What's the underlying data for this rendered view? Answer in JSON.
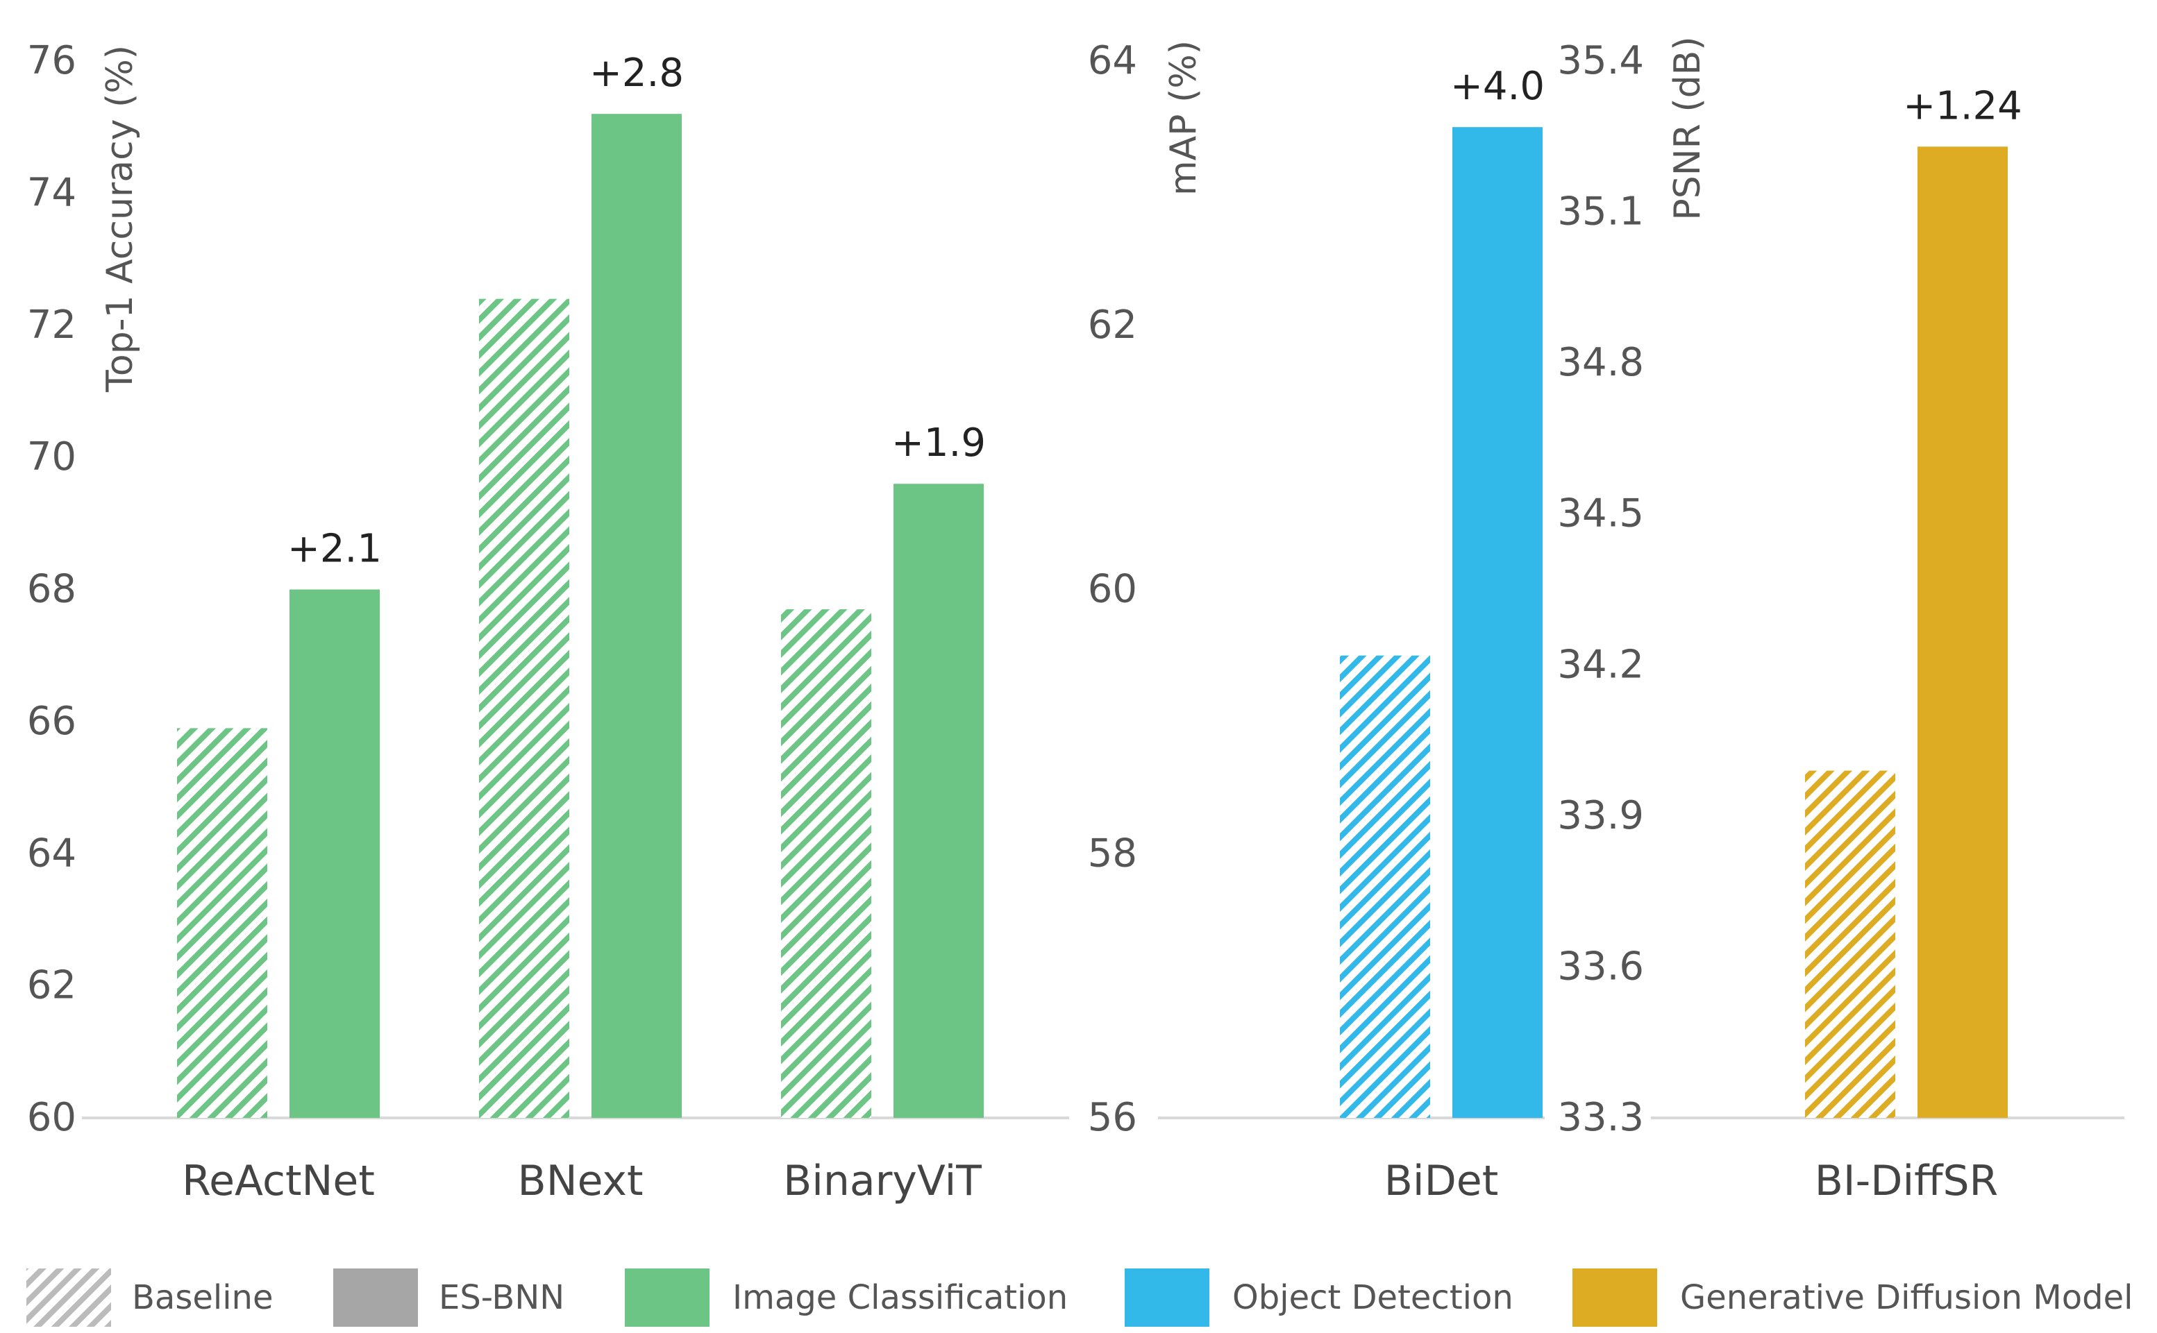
{
  "chart_data": [
    {
      "type": "bar",
      "categories": [
        "ReActNet",
        "BNext",
        "BinaryViT"
      ],
      "ylabel": "Top-1 Accuracy (%)",
      "ylim": [
        60,
        76
      ],
      "yticks": [
        "60",
        "62",
        "64",
        "66",
        "68",
        "70",
        "72",
        "74",
        "76"
      ],
      "series": [
        {
          "name": "Baseline",
          "values": [
            65.9,
            72.4,
            67.7
          ]
        },
        {
          "name": "ES-BNN",
          "values": [
            68.0,
            75.2,
            69.6
          ]
        }
      ],
      "annotations": [
        "+2.1",
        "+2.8",
        "+1.9"
      ],
      "color": "#6CC585"
    },
    {
      "type": "bar",
      "categories": [
        "BiDet"
      ],
      "ylabel": "mAP (%)",
      "ylim": [
        56,
        64
      ],
      "yticks": [
        "56",
        "58",
        "60",
        "62",
        "64"
      ],
      "series": [
        {
          "name": "Baseline",
          "values": [
            59.5
          ]
        },
        {
          "name": "ES-BNN",
          "values": [
            63.5
          ]
        }
      ],
      "annotations": [
        "+4.0"
      ],
      "color": "#33B8EA"
    },
    {
      "type": "bar",
      "categories": [
        "BI-DiffSR"
      ],
      "ylabel": "PSNR (dB)",
      "ylim": [
        33.3,
        35.4
      ],
      "yticks": [
        "33.3",
        "33.6",
        "33.9",
        "34.2",
        "34.5",
        "34.8",
        "35.1",
        "35.4"
      ],
      "series": [
        {
          "name": "Baseline",
          "values": [
            33.99
          ]
        },
        {
          "name": "ES-BNN",
          "values": [
            35.23
          ]
        }
      ],
      "annotations": [
        "+1.24"
      ],
      "color": "#DDAC22"
    }
  ],
  "legend": [
    {
      "label": "Baseline",
      "kind": "hatch",
      "color": "#BBBBBB"
    },
    {
      "label": "ES-BNN",
      "kind": "solid",
      "color": "#A6A6A6"
    },
    {
      "label": "Image Classification",
      "kind": "solid",
      "color": "#6CC585"
    },
    {
      "label": "Object Detection",
      "kind": "solid",
      "color": "#33B8EA"
    },
    {
      "label": "Generative Diffusion Model",
      "kind": "solid",
      "color": "#DDAC22"
    }
  ],
  "colors": {
    "axis": "#D9D9D9",
    "text": "#555555",
    "annotation": "#222222"
  }
}
